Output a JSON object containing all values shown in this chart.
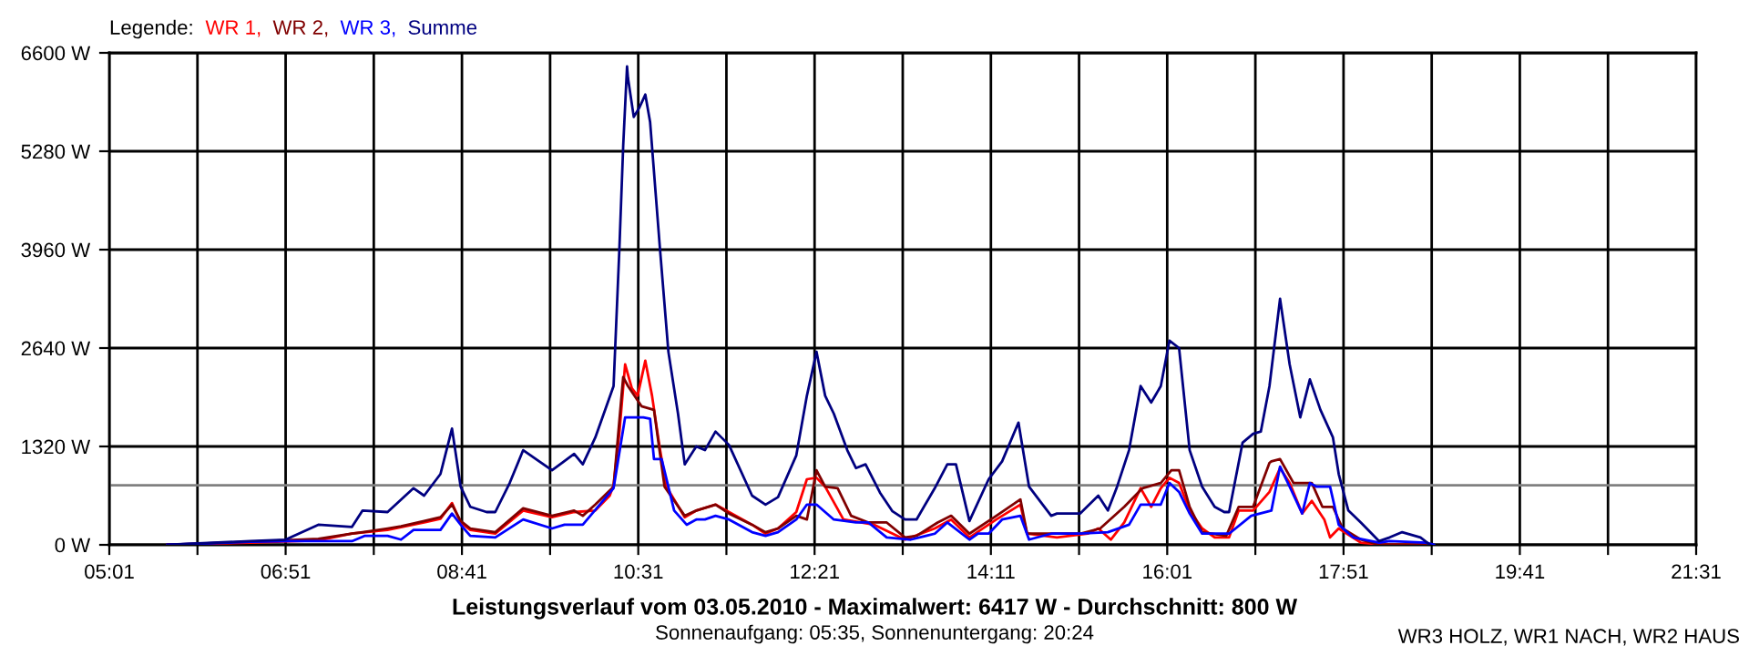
{
  "chart_data": {
    "type": "line",
    "title": "Leistungsverlauf vom 03.05.2010 - Maximalwert: 6417 W - Durchschnitt: 800 W",
    "subtitle": "Sonnenaufgang: 05:35, Sonnenuntergang: 20:24",
    "legend_title": "Legende:",
    "annotations": [
      "WR3 HOLZ, WR1 NACH, WR2 HAUS"
    ],
    "xlim": [
      5.0167,
      21.5167
    ],
    "ylim": [
      0,
      6600
    ],
    "xticks": [
      {
        "value": 5.0167,
        "label": "05:01"
      },
      {
        "value": 5.9333,
        "label": null
      },
      {
        "value": 6.85,
        "label": "06:51"
      },
      {
        "value": 7.7667,
        "label": null
      },
      {
        "value": 8.6833,
        "label": "08:41"
      },
      {
        "value": 9.6,
        "label": null
      },
      {
        "value": 10.5167,
        "label": "10:31"
      },
      {
        "value": 11.4333,
        "label": null
      },
      {
        "value": 12.35,
        "label": "12:21"
      },
      {
        "value": 13.2667,
        "label": null
      },
      {
        "value": 14.1833,
        "label": "14:11"
      },
      {
        "value": 15.1,
        "label": null
      },
      {
        "value": 16.0167,
        "label": "16:01"
      },
      {
        "value": 16.9333,
        "label": null
      },
      {
        "value": 17.85,
        "label": "17:51"
      },
      {
        "value": 18.7667,
        "label": null
      },
      {
        "value": 19.6833,
        "label": "19:41"
      },
      {
        "value": 20.6,
        "label": null
      },
      {
        "value": 21.5167,
        "label": "21:31"
      }
    ],
    "yticks": [
      {
        "value": 0,
        "label": "0 W"
      },
      {
        "value": 1320,
        "label": "1320 W"
      },
      {
        "value": 2640,
        "label": "2640 W"
      },
      {
        "value": 3960,
        "label": "3960 W"
      },
      {
        "value": 5280,
        "label": "5280 W"
      },
      {
        "value": 6600,
        "label": "6600 W"
      }
    ],
    "grid": true,
    "legend": "top left",
    "marker": "none",
    "line_style": "solid",
    "ref_lines": [
      {
        "axis": "y",
        "value": 800,
        "color": "#808080"
      }
    ],
    "series": [
      {
        "name": "WR 1,",
        "color": "#ff0000",
        "x": [
          5.62,
          6.48,
          7.19,
          7.54,
          7.91,
          8.29,
          8.46,
          8.58,
          8.67,
          8.77,
          9.03,
          9.32,
          9.62,
          9.85,
          10.07,
          10.22,
          10.26,
          10.32,
          10.38,
          10.45,
          10.51,
          10.59,
          10.66,
          10.74,
          10.81,
          11.0,
          11.12,
          11.32,
          11.46,
          11.7,
          11.84,
          11.97,
          12.16,
          12.27,
          12.37,
          12.46,
          12.65,
          12.97,
          13.29,
          13.6,
          13.77,
          13.96,
          14.24,
          14.49,
          14.56,
          14.87,
          15.19,
          15.3,
          15.43,
          15.57,
          15.74,
          15.85,
          15.95,
          16.04,
          16.14,
          16.25,
          16.38,
          16.51,
          16.66,
          16.76,
          16.91,
          17.08,
          17.19,
          17.29,
          17.42,
          17.52,
          17.65,
          17.71,
          17.8,
          18.03,
          18.27,
          18.71
        ],
        "values": [
          0,
          30,
          60,
          150,
          200,
          300,
          350,
          560,
          300,
          200,
          150,
          460,
          370,
          440,
          460,
          660,
          800,
          1500,
          2420,
          2100,
          2000,
          2470,
          2000,
          1300,
          780,
          370,
          460,
          540,
          440,
          270,
          150,
          220,
          440,
          880,
          900,
          780,
          340,
          270,
          70,
          220,
          340,
          100,
          340,
          540,
          150,
          100,
          150,
          220,
          70,
          300,
          760,
          510,
          760,
          900,
          830,
          460,
          220,
          100,
          100,
          460,
          460,
          710,
          1030,
          830,
          420,
          590,
          340,
          100,
          220,
          30,
          0,
          0
        ]
      },
      {
        "name": "WR 2,",
        "color": "#800000",
        "x": [
          5.62,
          6.48,
          7.19,
          7.54,
          7.65,
          7.91,
          8.05,
          8.29,
          8.46,
          8.58,
          8.67,
          8.77,
          9.03,
          9.32,
          9.62,
          9.85,
          9.94,
          10.07,
          10.26,
          10.36,
          10.41,
          10.55,
          10.68,
          10.79,
          11.0,
          11.12,
          11.32,
          11.46,
          11.7,
          11.84,
          11.97,
          12.16,
          12.27,
          12.37,
          12.46,
          12.59,
          12.73,
          12.91,
          13.1,
          13.29,
          13.41,
          13.63,
          13.77,
          13.96,
          14.24,
          14.49,
          14.56,
          14.81,
          15.11,
          15.32,
          15.57,
          15.76,
          15.95,
          16.06,
          16.14,
          16.25,
          16.38,
          16.63,
          16.76,
          16.91,
          17.08,
          17.1,
          17.19,
          17.33,
          17.52,
          17.63,
          17.74,
          17.84,
          18.03,
          18.22,
          18.71
        ],
        "values": [
          0,
          40,
          80,
          150,
          170,
          220,
          250,
          320,
          370,
          540,
          320,
          220,
          170,
          490,
          390,
          460,
          390,
          540,
          780,
          2250,
          2130,
          1860,
          1810,
          780,
          390,
          460,
          540,
          420,
          270,
          170,
          220,
          390,
          340,
          1000,
          780,
          760,
          390,
          300,
          300,
          100,
          120,
          300,
          390,
          150,
          390,
          610,
          150,
          150,
          150,
          220,
          510,
          760,
          830,
          1000,
          1000,
          510,
          170,
          120,
          510,
          510,
          1100,
          1120,
          1150,
          830,
          830,
          510,
          510,
          220,
          70,
          0,
          0
        ]
      },
      {
        "name": "WR 3,",
        "color": "#0000ff",
        "x": [
          5.62,
          6.48,
          6.91,
          7.54,
          7.67,
          7.91,
          8.05,
          8.18,
          8.46,
          8.58,
          8.67,
          8.77,
          9.03,
          9.32,
          9.62,
          9.75,
          9.94,
          10.26,
          10.38,
          10.57,
          10.64,
          10.68,
          10.76,
          10.89,
          11.02,
          11.12,
          11.21,
          11.32,
          11.46,
          11.7,
          11.84,
          11.97,
          12.16,
          12.27,
          12.37,
          12.55,
          12.78,
          12.91,
          13.1,
          13.35,
          13.6,
          13.73,
          13.96,
          14.05,
          14.16,
          14.3,
          14.49,
          14.58,
          14.81,
          15.11,
          15.4,
          15.62,
          15.74,
          15.95,
          16.04,
          16.14,
          16.25,
          16.38,
          16.66,
          16.89,
          17.1,
          17.19,
          17.29,
          17.42,
          17.5,
          17.57,
          17.71,
          17.8,
          17.95,
          18.22,
          18.33,
          18.71,
          18.79
        ],
        "values": [
          0,
          40,
          50,
          50,
          120,
          120,
          70,
          200,
          200,
          420,
          270,
          120,
          100,
          340,
          220,
          270,
          270,
          760,
          1710,
          1710,
          1690,
          1150,
          1150,
          460,
          270,
          340,
          340,
          390,
          340,
          170,
          120,
          170,
          340,
          540,
          540,
          340,
          300,
          300,
          100,
          70,
          150,
          300,
          70,
          150,
          150,
          340,
          390,
          70,
          150,
          150,
          170,
          270,
          540,
          540,
          830,
          710,
          420,
          150,
          150,
          390,
          460,
          1050,
          780,
          420,
          830,
          780,
          780,
          270,
          100,
          30,
          50,
          30,
          0
        ]
      },
      {
        "name": "Summe",
        "color": "#000080",
        "x": [
          5.62,
          6.48,
          6.85,
          7.19,
          7.54,
          7.65,
          7.91,
          8.18,
          8.29,
          8.46,
          8.58,
          8.67,
          8.77,
          8.94,
          9.03,
          9.18,
          9.32,
          9.62,
          9.85,
          9.94,
          10.07,
          10.26,
          10.32,
          10.36,
          10.4,
          10.41,
          10.47,
          10.53,
          10.59,
          10.64,
          10.74,
          10.83,
          10.93,
          11.0,
          11.12,
          11.21,
          11.32,
          11.46,
          11.7,
          11.84,
          11.97,
          12.16,
          12.27,
          12.37,
          12.46,
          12.55,
          12.69,
          12.78,
          12.88,
          13.03,
          13.16,
          13.29,
          13.41,
          13.6,
          13.73,
          13.82,
          13.96,
          14.16,
          14.3,
          14.47,
          14.58,
          14.81,
          14.87,
          15.11,
          15.3,
          15.4,
          15.49,
          15.62,
          15.74,
          15.85,
          15.95,
          16.04,
          16.14,
          16.25,
          16.38,
          16.51,
          16.61,
          16.66,
          16.8,
          16.91,
          16.99,
          17.08,
          17.19,
          17.29,
          17.4,
          17.5,
          17.61,
          17.74,
          17.8,
          17.9,
          18.03,
          18.22,
          18.33,
          18.46,
          18.65,
          18.75
        ],
        "values": [
          0,
          50,
          70,
          270,
          240,
          460,
          440,
          760,
          660,
          950,
          1560,
          780,
          510,
          440,
          440,
          830,
          1270,
          1000,
          1220,
          1080,
          1440,
          2130,
          3960,
          5350,
          6417,
          6260,
          5740,
          5870,
          6040,
          5670,
          4010,
          2590,
          1760,
          1080,
          1320,
          1270,
          1520,
          1340,
          660,
          540,
          640,
          1200,
          2000,
          2590,
          2000,
          1760,
          1270,
          1030,
          1080,
          700,
          450,
          340,
          340,
          760,
          1080,
          1080,
          320,
          880,
          1120,
          1640,
          780,
          390,
          420,
          420,
          660,
          460,
          760,
          1270,
          2130,
          1910,
          2130,
          2740,
          2640,
          1270,
          780,
          510,
          440,
          440,
          1370,
          1490,
          1520,
          2130,
          3300,
          2420,
          1710,
          2220,
          1810,
          1440,
          950,
          460,
          300,
          50,
          100,
          170,
          100,
          0
        ]
      }
    ]
  }
}
